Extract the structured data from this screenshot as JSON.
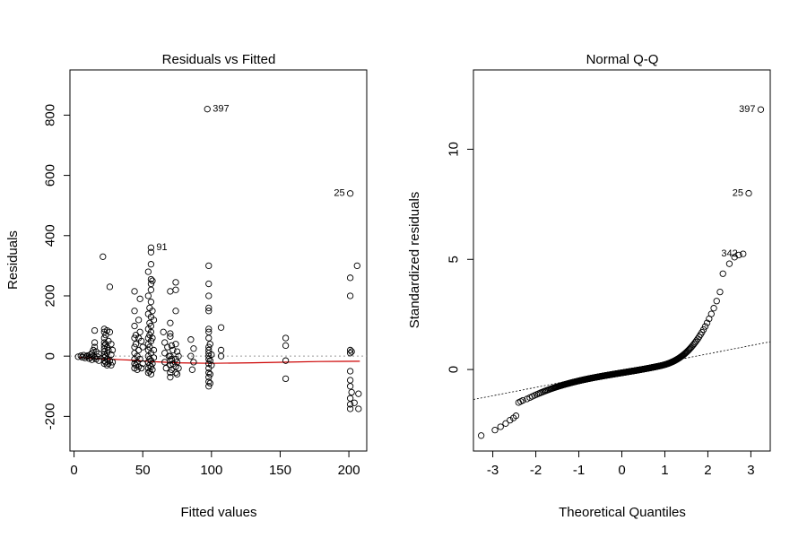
{
  "chart_data": [
    {
      "type": "scatter",
      "title": "Residuals vs Fitted",
      "xlabel": "Fitted values",
      "ylabel": "Residuals",
      "xlim": [
        -3,
        213
      ],
      "ylim": [
        -315,
        950
      ],
      "xticks": [
        0,
        50,
        100,
        150,
        200
      ],
      "yticks": [
        -200,
        0,
        200,
        400,
        600,
        800
      ],
      "xtick_labels": [
        "0",
        "50",
        "100",
        "150",
        "200"
      ],
      "ytick_labels": [
        "-200",
        "0",
        "200",
        "400",
        "600",
        "800"
      ],
      "reference_line": {
        "y": 0,
        "style": "dotted",
        "color": "#9a9a9a"
      },
      "smoother": {
        "color": "#cc0000",
        "x": [
          4,
          15,
          25,
          35,
          45,
          55,
          65,
          75,
          85,
          100,
          130,
          155,
          178,
          208
        ],
        "y": [
          -4,
          -8,
          -10,
          -12,
          -14,
          -18,
          -20,
          -22,
          -23,
          -24,
          -22,
          -20,
          -18,
          -17
        ]
      },
      "points": [
        [
          3,
          -2
        ],
        [
          5,
          1
        ],
        [
          6,
          -4
        ],
        [
          7,
          3
        ],
        [
          8,
          -6
        ],
        [
          9,
          -1
        ],
        [
          10,
          2
        ],
        [
          11,
          -8
        ],
        [
          12,
          5
        ],
        [
          12,
          -3
        ],
        [
          13,
          10
        ],
        [
          13,
          -12
        ],
        [
          14,
          20
        ],
        [
          14,
          0
        ],
        [
          15,
          -5
        ],
        [
          15,
          30
        ],
        [
          15,
          45
        ],
        [
          15,
          85
        ],
        [
          16,
          -10
        ],
        [
          16,
          15
        ],
        [
          17,
          -2
        ],
        [
          18,
          8
        ],
        [
          18,
          -15
        ],
        [
          21,
          330
        ],
        [
          22,
          90
        ],
        [
          22,
          80
        ],
        [
          22,
          60
        ],
        [
          22,
          45
        ],
        [
          22,
          35
        ],
        [
          22,
          25
        ],
        [
          22,
          15
        ],
        [
          22,
          5
        ],
        [
          22,
          -5
        ],
        [
          22,
          -15
        ],
        [
          22,
          -25
        ],
        [
          23,
          70
        ],
        [
          23,
          40
        ],
        [
          23,
          0
        ],
        [
          23,
          -20
        ],
        [
          24,
          85
        ],
        [
          24,
          30
        ],
        [
          24,
          10
        ],
        [
          24,
          -10
        ],
        [
          24,
          -30
        ],
        [
          25,
          50
        ],
        [
          25,
          20
        ],
        [
          25,
          -25
        ],
        [
          26,
          230
        ],
        [
          26,
          80
        ],
        [
          26,
          -15
        ],
        [
          27,
          40
        ],
        [
          27,
          5
        ],
        [
          27,
          -30
        ],
        [
          28,
          20
        ],
        [
          28,
          -20
        ],
        [
          44,
          215
        ],
        [
          44,
          150
        ],
        [
          44,
          100
        ],
        [
          44,
          60
        ],
        [
          44,
          30
        ],
        [
          44,
          10
        ],
        [
          44,
          -10
        ],
        [
          44,
          -25
        ],
        [
          44,
          -40
        ],
        [
          45,
          70
        ],
        [
          45,
          40
        ],
        [
          45,
          -30
        ],
        [
          46,
          0
        ],
        [
          46,
          -20
        ],
        [
          46,
          -45
        ],
        [
          47,
          120
        ],
        [
          47,
          60
        ],
        [
          47,
          20
        ],
        [
          47,
          -35
        ],
        [
          48,
          190
        ],
        [
          48,
          80
        ],
        [
          48,
          -10
        ],
        [
          49,
          50
        ],
        [
          49,
          -40
        ],
        [
          50,
          30
        ],
        [
          50,
          -25
        ],
        [
          54,
          280
        ],
        [
          54,
          200
        ],
        [
          54,
          140
        ],
        [
          54,
          90
        ],
        [
          54,
          60
        ],
        [
          54,
          40
        ],
        [
          54,
          20
        ],
        [
          54,
          0
        ],
        [
          54,
          -20
        ],
        [
          54,
          -40
        ],
        [
          54,
          -55
        ],
        [
          55,
          160
        ],
        [
          55,
          110
        ],
        [
          55,
          70
        ],
        [
          55,
          30
        ],
        [
          55,
          -10
        ],
        [
          55,
          -30
        ],
        [
          55,
          -50
        ],
        [
          56,
          360
        ],
        [
          56,
          345
        ],
        [
          56,
          305
        ],
        [
          56,
          255
        ],
        [
          56,
          240
        ],
        [
          56,
          220
        ],
        [
          56,
          180
        ],
        [
          56,
          130
        ],
        [
          56,
          100
        ],
        [
          56,
          80
        ],
        [
          56,
          50
        ],
        [
          56,
          10
        ],
        [
          56,
          -15
        ],
        [
          56,
          -35
        ],
        [
          56,
          -60
        ],
        [
          57,
          250
        ],
        [
          57,
          150
        ],
        [
          57,
          60
        ],
        [
          57,
          -25
        ],
        [
          57,
          -45
        ],
        [
          58,
          120
        ],
        [
          58,
          20
        ],
        [
          58,
          -5
        ],
        [
          65,
          80
        ],
        [
          66,
          45
        ],
        [
          66,
          10
        ],
        [
          66,
          -20
        ],
        [
          67,
          -40
        ],
        [
          68,
          30
        ],
        [
          69,
          0
        ],
        [
          70,
          -30
        ],
        [
          70,
          215
        ],
        [
          70,
          110
        ],
        [
          70,
          75
        ],
        [
          70,
          65
        ],
        [
          70,
          0
        ],
        [
          70,
          -15
        ],
        [
          70,
          -30
        ],
        [
          70,
          -55
        ],
        [
          70,
          -70
        ],
        [
          71,
          35
        ],
        [
          71,
          -10
        ],
        [
          71,
          -45
        ],
        [
          72,
          20
        ],
        [
          72,
          -25
        ],
        [
          74,
          245
        ],
        [
          74,
          220
        ],
        [
          74,
          150
        ],
        [
          74,
          40
        ],
        [
          74,
          -10
        ],
        [
          74,
          -35
        ],
        [
          74,
          -55
        ],
        [
          75,
          15
        ],
        [
          75,
          -20
        ],
        [
          75,
          -60
        ],
        [
          76,
          0
        ],
        [
          76,
          -40
        ],
        [
          85,
          55
        ],
        [
          85,
          0
        ],
        [
          86,
          -45
        ],
        [
          87,
          25
        ],
        [
          87,
          -20
        ],
        [
          97,
          820
        ],
        [
          98,
          300
        ],
        [
          98,
          240
        ],
        [
          98,
          200
        ],
        [
          98,
          160
        ],
        [
          98,
          150
        ],
        [
          98,
          90
        ],
        [
          98,
          80
        ],
        [
          98,
          60
        ],
        [
          98,
          30
        ],
        [
          98,
          20
        ],
        [
          98,
          10
        ],
        [
          98,
          0
        ],
        [
          98,
          -10
        ],
        [
          98,
          -25
        ],
        [
          98,
          -40
        ],
        [
          98,
          -55
        ],
        [
          98,
          -70
        ],
        [
          98,
          -85
        ],
        [
          98,
          -100
        ],
        [
          99,
          40
        ],
        [
          99,
          -15
        ],
        [
          99,
          -60
        ],
        [
          99,
          -90
        ],
        [
          100,
          5
        ],
        [
          100,
          -30
        ],
        [
          107,
          95
        ],
        [
          107,
          20
        ],
        [
          107,
          0
        ],
        [
          154,
          60
        ],
        [
          154,
          35
        ],
        [
          154,
          -15
        ],
        [
          154,
          -75
        ],
        [
          201,
          540
        ],
        [
          201,
          260
        ],
        [
          201,
          200
        ],
        [
          201,
          20
        ],
        [
          201,
          10
        ],
        [
          201,
          -50
        ],
        [
          201,
          -80
        ],
        [
          201,
          -100
        ],
        [
          201,
          -140
        ],
        [
          201,
          -160
        ],
        [
          201,
          -175
        ],
        [
          202,
          15
        ],
        [
          202,
          -120
        ],
        [
          204,
          -155
        ],
        [
          206,
          300
        ],
        [
          207,
          -125
        ],
        [
          207,
          -175
        ]
      ],
      "point_labels": [
        {
          "text": "397",
          "x": 97,
          "y": 820
        },
        {
          "text": "25",
          "x": 201,
          "y": 540
        },
        {
          "text": "91",
          "x": 56,
          "y": 360
        }
      ]
    },
    {
      "type": "scatter",
      "title": "Normal Q-Q",
      "xlabel": "Theoretical Quantiles",
      "ylabel": "Standardized residuals",
      "xlim": [
        -3.45,
        3.45
      ],
      "ylim": [
        -3.7,
        13.6
      ],
      "xticks": [
        -3,
        -2,
        -1,
        0,
        1,
        2,
        3
      ],
      "yticks": [
        0,
        5,
        10
      ],
      "xtick_labels": [
        "-3",
        "-2",
        "-1",
        "0",
        "1",
        "2",
        "3"
      ],
      "ytick_labels": [
        "0",
        "5",
        "10"
      ],
      "reference_line": {
        "intercept": -0.05,
        "slope": 0.38,
        "style": "dotted",
        "color": "#000000"
      },
      "n_points": 400,
      "tail_points": [
        [
          -3.27,
          -3.0
        ],
        [
          -2.95,
          -2.75
        ],
        [
          -2.82,
          -2.6
        ],
        [
          -2.7,
          -2.45
        ],
        [
          -2.6,
          -2.3
        ],
        [
          -2.52,
          -2.2
        ],
        [
          -2.46,
          -2.1
        ],
        [
          -2.4,
          -1.5
        ],
        [
          -2.35,
          -1.45
        ],
        [
          -2.3,
          -1.4
        ],
        [
          2.35,
          4.35
        ],
        [
          2.5,
          4.8
        ],
        [
          2.62,
          5.1
        ],
        [
          2.72,
          5.2
        ],
        [
          2.82,
          5.25
        ],
        [
          2.95,
          8.0
        ],
        [
          3.23,
          11.8
        ]
      ],
      "point_labels": [
        {
          "text": "397",
          "x": 3.23,
          "y": 11.8
        },
        {
          "text": "25",
          "x": 2.95,
          "y": 8.0
        },
        {
          "text": "342",
          "x": 2.82,
          "y": 5.25
        }
      ]
    }
  ]
}
